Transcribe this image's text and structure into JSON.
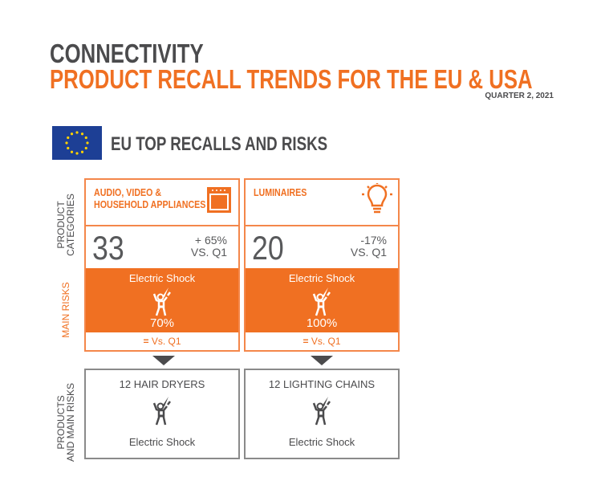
{
  "header": {
    "title": "CONNECTIVITY",
    "subtitle": "PRODUCT RECALL TRENDS FOR THE EU & USA",
    "period": "QUARTER 2, 2021"
  },
  "section": {
    "title": "EU TOP RECALLS AND RISKS",
    "flag_icon": "eu-flag-icon"
  },
  "side_labels": {
    "categories_1": "PRODUCT",
    "categories_2": "CATEGORIES",
    "risks": "MAIN RISKS",
    "products_1": "PRODUCTS",
    "products_2": "AND MAIN RISKS"
  },
  "colors": {
    "accent": "#f07022",
    "text": "#4b4b4d"
  },
  "cards": [
    {
      "category": "AUDIO, VIDEO & HOUSEHOLD APPLIANCES",
      "icon": "oven-icon",
      "count": "33",
      "change": "+ 65%",
      "vs": "VS. Q1",
      "risk": "Electric Shock",
      "risk_pct": "70%",
      "risk_change_icon": "equals-icon",
      "risk_vs": "Vs. Q1",
      "product": "12 HAIR DRYERS",
      "product_risk": "Electric Shock"
    },
    {
      "category": "LUMINAIRES",
      "icon": "light-bulb-icon",
      "count": "20",
      "change": "-17%",
      "vs": "VS. Q1",
      "risk": "Electric Shock",
      "risk_pct": "100%",
      "risk_change_icon": "equals-icon",
      "risk_vs": "Vs. Q1",
      "product": "12 LIGHTING CHAINS",
      "product_risk": "Electric Shock"
    }
  ]
}
